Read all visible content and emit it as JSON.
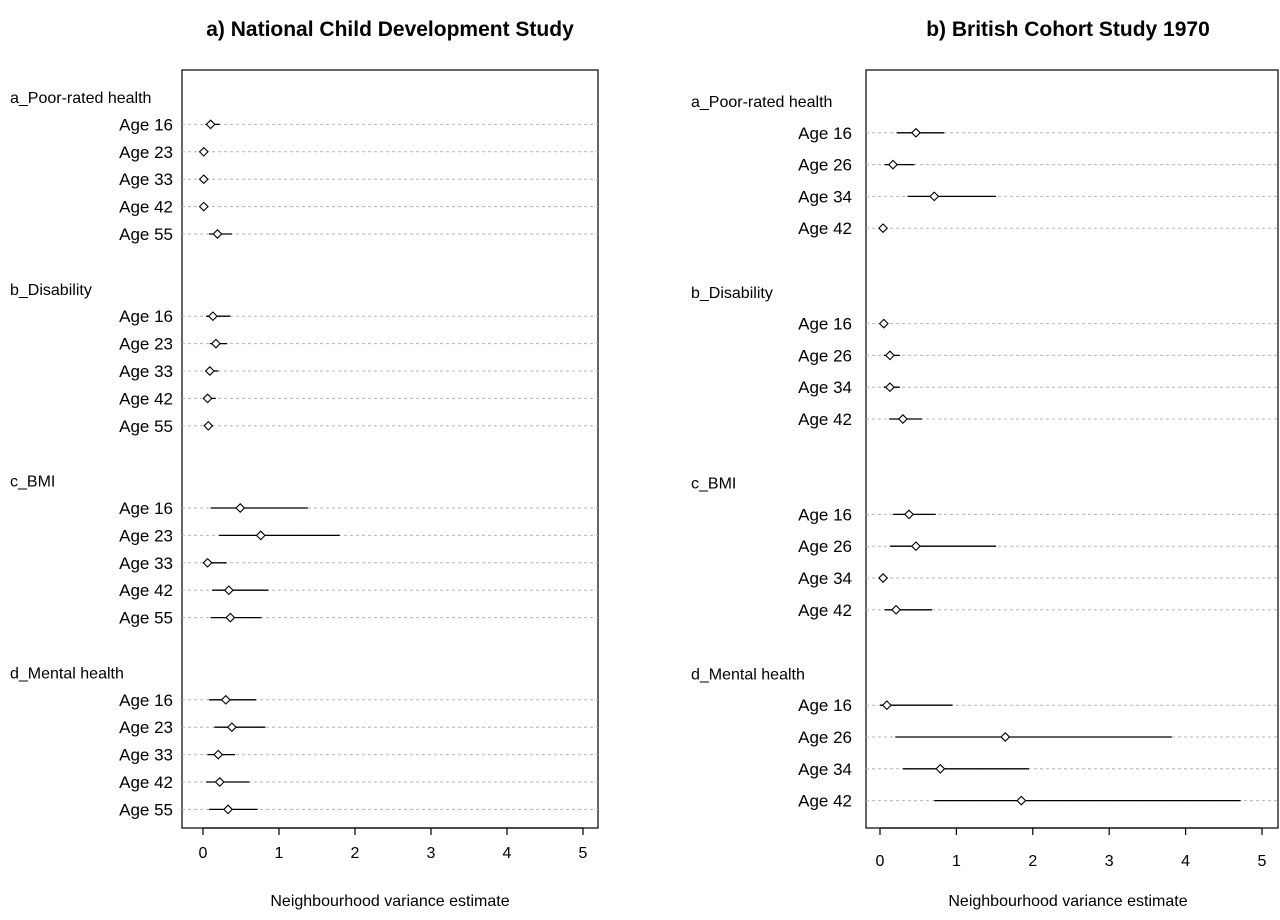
{
  "chart_data": [
    {
      "type": "forest",
      "title": "a) National Child Development Study",
      "xlabel": "Neighbourhood variance estimate",
      "xlim": [
        0,
        5
      ],
      "xticks": [
        "0",
        "1",
        "2",
        "3",
        "4",
        "5"
      ],
      "grid": "dotted horizontal",
      "groups": [
        {
          "label": "a_Poor-rated health",
          "rows": [
            {
              "label": "Age 16",
              "est": 0.1,
              "lo": 0.03,
              "hi": 0.22
            },
            {
              "label": "Age 23",
              "est": 0.01,
              "lo": 0.0,
              "hi": 0.03
            },
            {
              "label": "Age 33",
              "est": 0.01,
              "lo": 0.0,
              "hi": 0.03
            },
            {
              "label": "Age 42",
              "est": 0.01,
              "lo": 0.0,
              "hi": 0.03
            },
            {
              "label": "Age 55",
              "est": 0.19,
              "lo": 0.08,
              "hi": 0.38
            }
          ]
        },
        {
          "label": "b_Disability",
          "rows": [
            {
              "label": "Age 16",
              "est": 0.13,
              "lo": 0.04,
              "hi": 0.36
            },
            {
              "label": "Age 23",
              "est": 0.17,
              "lo": 0.09,
              "hi": 0.32
            },
            {
              "label": "Age 33",
              "est": 0.09,
              "lo": 0.03,
              "hi": 0.2
            },
            {
              "label": "Age 42",
              "est": 0.06,
              "lo": 0.02,
              "hi": 0.17
            },
            {
              "label": "Age 55",
              "est": 0.07,
              "lo": 0.02,
              "hi": 0.13
            }
          ]
        },
        {
          "label": "c_BMI",
          "rows": [
            {
              "label": "Age 16",
              "est": 0.49,
              "lo": 0.1,
              "hi": 1.38
            },
            {
              "label": "Age 23",
              "est": 0.76,
              "lo": 0.21,
              "hi": 1.8
            },
            {
              "label": "Age 33",
              "est": 0.06,
              "lo": 0.0,
              "hi": 0.31
            },
            {
              "label": "Age 42",
              "est": 0.34,
              "lo": 0.12,
              "hi": 0.86
            },
            {
              "label": "Age 55",
              "est": 0.36,
              "lo": 0.1,
              "hi": 0.77
            }
          ]
        },
        {
          "label": "d_Mental health",
          "rows": [
            {
              "label": "Age 16",
              "est": 0.3,
              "lo": 0.08,
              "hi": 0.7
            },
            {
              "label": "Age 23",
              "est": 0.38,
              "lo": 0.15,
              "hi": 0.82
            },
            {
              "label": "Age 33",
              "est": 0.2,
              "lo": 0.06,
              "hi": 0.42
            },
            {
              "label": "Age 42",
              "est": 0.22,
              "lo": 0.04,
              "hi": 0.61
            },
            {
              "label": "Age 55",
              "est": 0.33,
              "lo": 0.08,
              "hi": 0.72
            }
          ]
        }
      ]
    },
    {
      "type": "forest",
      "title": "b) British Cohort Study 1970",
      "xlabel": "Neighbourhood variance estimate",
      "xlim": [
        0,
        5
      ],
      "xticks": [
        "0",
        "1",
        "2",
        "3",
        "4",
        "5"
      ],
      "grid": "dotted horizontal",
      "groups": [
        {
          "label": "a_Poor-rated health",
          "rows": [
            {
              "label": "Age 16",
              "est": 0.47,
              "lo": 0.22,
              "hi": 0.84
            },
            {
              "label": "Age 26",
              "est": 0.17,
              "lo": 0.06,
              "hi": 0.45
            },
            {
              "label": "Age 34",
              "est": 0.71,
              "lo": 0.36,
              "hi": 1.52
            },
            {
              "label": "Age 42",
              "est": 0.04,
              "lo": 0.0,
              "hi": 0.08
            }
          ]
        },
        {
          "label": "b_Disability",
          "rows": [
            {
              "label": "Age 16",
              "est": 0.05,
              "lo": 0.0,
              "hi": 0.09
            },
            {
              "label": "Age 26",
              "est": 0.13,
              "lo": 0.05,
              "hi": 0.26
            },
            {
              "label": "Age 34",
              "est": 0.13,
              "lo": 0.05,
              "hi": 0.26
            },
            {
              "label": "Age 42",
              "est": 0.3,
              "lo": 0.12,
              "hi": 0.55
            }
          ]
        },
        {
          "label": "c_BMI",
          "rows": [
            {
              "label": "Age 16",
              "est": 0.38,
              "lo": 0.17,
              "hi": 0.73
            },
            {
              "label": "Age 26",
              "est": 0.47,
              "lo": 0.13,
              "hi": 1.52
            },
            {
              "label": "Age 34",
              "est": 0.04,
              "lo": 0.0,
              "hi": 0.1
            },
            {
              "label": "Age 42",
              "est": 0.21,
              "lo": 0.06,
              "hi": 0.68
            }
          ]
        },
        {
          "label": "d_Mental health",
          "rows": [
            {
              "label": "Age 16",
              "est": 0.09,
              "lo": 0.0,
              "hi": 0.95
            },
            {
              "label": "Age 26",
              "est": 1.64,
              "lo": 0.2,
              "hi": 3.82
            },
            {
              "label": "Age 34",
              "est": 0.79,
              "lo": 0.3,
              "hi": 1.95
            },
            {
              "label": "Age 42",
              "est": 1.85,
              "lo": 0.71,
              "hi": 4.72
            }
          ]
        }
      ]
    }
  ]
}
